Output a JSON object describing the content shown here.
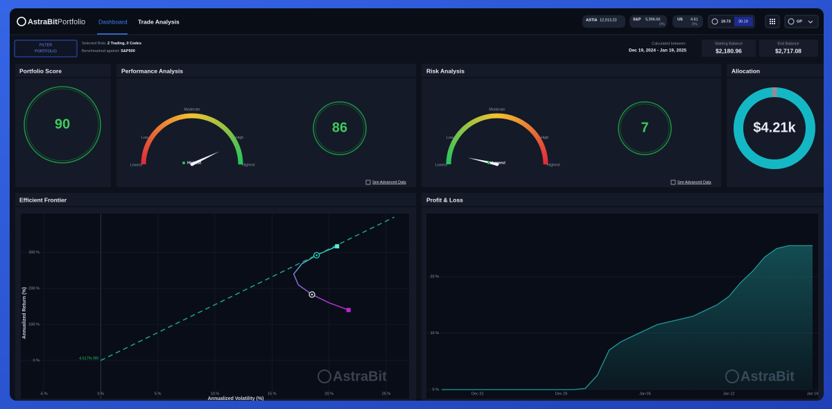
{
  "header": {
    "brand": "AstraBit",
    "brand_suffix": "Portfolio",
    "nav": [
      "Dashboard",
      "Trade Analysis"
    ],
    "tickers": [
      {
        "symbol": "ASTIA",
        "value": "12,013.23"
      },
      {
        "symbol": "S&P",
        "value": "5,996.66",
        "change": "0%"
      },
      {
        "symbol": "US",
        "value": "4.61",
        "change": "0%"
      }
    ],
    "stats": [
      "19.73",
      "30.19"
    ],
    "user": "GP"
  },
  "filter": {
    "button": [
      "FILTER",
      "PORTFOLIO"
    ],
    "selected_label": "Selected Bots:",
    "selected_value": "2 Trading, 0 Codes",
    "benchmark_label": "Benchmarked against:",
    "benchmark_value": "S&P500"
  },
  "period": {
    "label": "Calculated between:",
    "range": "Dec 19, 2024 - Jan 19, 2025"
  },
  "balances": [
    {
      "label": "Starting Balance",
      "value": "$2,180.96"
    },
    {
      "label": "End Balance",
      "value": "$2,717.08"
    }
  ],
  "panels": {
    "portfolio_score": {
      "title": "Portfolio Score",
      "score": 90
    },
    "performance": {
      "title": "Performance Analysis",
      "gauge_labels": [
        "Lowest",
        "Low",
        "Moderate",
        "High",
        "Highest"
      ],
      "legend": "Highest",
      "score": 86,
      "gauge_colors": [
        "#e0283a",
        "#f2c230",
        "#22c55e"
      ],
      "link": "See Advanced Data"
    },
    "risk": {
      "title": "Risk Analysis",
      "gauge_labels": [
        "Lowest",
        "Low",
        "Moderate",
        "High",
        "Highest"
      ],
      "legend": "Lowest",
      "score": 7,
      "gauge_colors": [
        "#22c55e",
        "#f2c230",
        "#e0283a"
      ],
      "link": "See Advanced Data"
    },
    "allocation": {
      "title": "Allocation",
      "total": "$4.21k"
    }
  },
  "chart_data": [
    {
      "type": "line",
      "title": "Efficient Frontier",
      "x_label": "Annualized Volatility (%)",
      "y_label": "Annualized Return (%)",
      "xlim": [
        -7,
        27
      ],
      "ylim": [
        -106,
        408
      ],
      "xticks": [
        {
          "value": -5,
          "label": "-5 %"
        },
        {
          "value": 0,
          "label": "0 %"
        },
        {
          "value": 5,
          "label": "5 %"
        },
        {
          "value": 10,
          "label": "10 %"
        },
        {
          "value": 15,
          "label": "15 %"
        },
        {
          "value": 20,
          "label": "20 %"
        },
        {
          "value": 25,
          "label": "25 %"
        }
      ],
      "yticks": [
        {
          "value": 0,
          "label": "0 %"
        },
        {
          "value": 100,
          "label": "100 %"
        },
        {
          "value": 200,
          "label": "200 %"
        },
        {
          "value": 300,
          "label": "300 %"
        }
      ],
      "grid": true,
      "series": [
        {
          "colors": [
            "#2dd4bf",
            "#c026d3"
          ],
          "x": [
            20.7,
            19.8,
            18.9,
            17.6,
            16.9,
            17.3,
            18.5,
            20.0,
            21.7
          ],
          "values": [
            317,
            305,
            292,
            268,
            240,
            210,
            183,
            160,
            140
          ]
        },
        {
          "color": "#1fa391",
          "style": "dashed",
          "x": [
            0,
            25.7
          ],
          "values": [
            0,
            398
          ]
        }
      ],
      "annotation": "4.517% RR",
      "markers": {
        "x": [
          20.7,
          18.9,
          18.5,
          21.7
        ],
        "values": [
          317,
          292,
          183,
          140
        ],
        "shapes": [
          "square",
          "ring",
          "ring",
          "square"
        ],
        "colors": [
          "#5eead4",
          "#2dd4bf",
          "#e5e7eb",
          "#c026d3"
        ]
      },
      "watermark": "AstraBit"
    },
    {
      "type": "area",
      "title": "Profit & Loss",
      "color": "#1f9a9a",
      "categories": [
        null,
        null,
        null,
        "Dec 22",
        null,
        null,
        null,
        null,
        null,
        null,
        "Dec 29",
        null,
        null,
        null,
        null,
        null,
        null,
        "Jan 05",
        null,
        null,
        null,
        null,
        null,
        null,
        "Jan 12",
        null,
        null,
        null,
        null,
        null,
        null,
        "Jan 19"
      ],
      "values": [
        0,
        0,
        0,
        0,
        0,
        0,
        0,
        0,
        0,
        0,
        0,
        0,
        0.2,
        2.5,
        7,
        8.5,
        9.5,
        10.5,
        11.5,
        12,
        12.5,
        13,
        14,
        15,
        16.5,
        19,
        21,
        23.5,
        25,
        25.5,
        25.5,
        25.5
      ],
      "ylim": [
        -1.6,
        31.2
      ],
      "yticks": [
        {
          "value": 0,
          "label": "0 %"
        },
        {
          "value": 10,
          "label": "10 %"
        },
        {
          "value": 20,
          "label": "20 %"
        }
      ],
      "grid": true,
      "watermark": "AstraBit"
    }
  ]
}
